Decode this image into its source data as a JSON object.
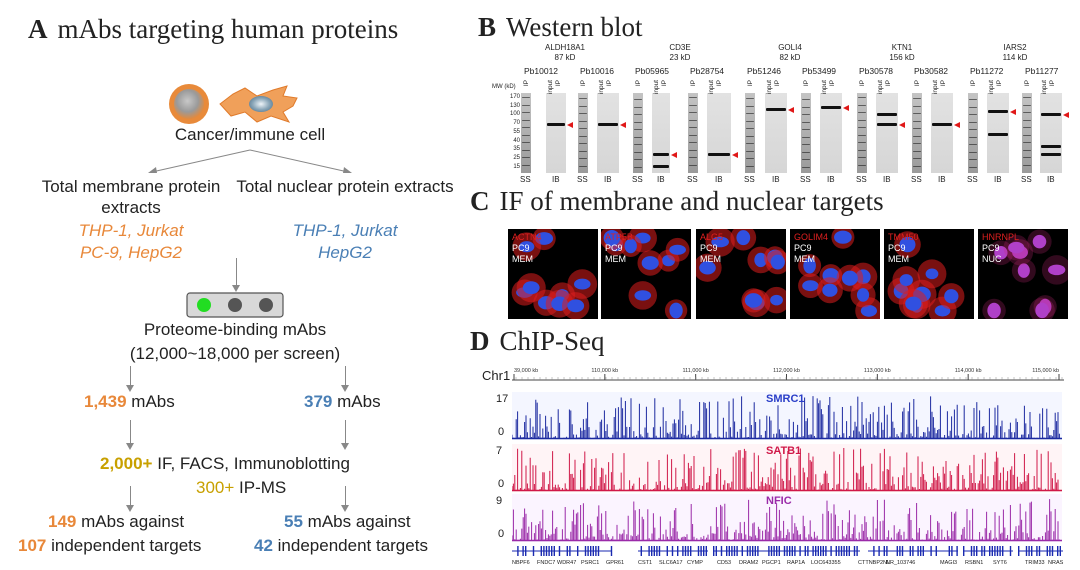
{
  "panelA": {
    "letter": "A",
    "title": "mAbs targeting human proteins",
    "cell_label": "Cancer/immune cell",
    "membrane_title": "Total membrane protein extracts",
    "membrane_cells": [
      "THP-1, Jurkat",
      "PC-9, HepG2"
    ],
    "nuclear_title": "Total nuclear protein extracts",
    "nuclear_cells": [
      "THP-1, Jurkat",
      "HepG2"
    ],
    "binding_title": "Proteome-binding mAbs",
    "binding_sub": "(12,000~18,000 per screen)",
    "left_count": "1,439",
    "right_count": "379",
    "mabs_word": "mAbs",
    "validation_count": "2,000+",
    "validation_text": "IF, FACS, Immunoblotting",
    "ipms_count": "300+",
    "ipms_text": "IP-MS",
    "left_final_count": "149",
    "left_final_target_count": "107",
    "right_final_count": "55",
    "right_final_target_count": "42",
    "against_text": "mAbs against",
    "independent_text": "independent targets"
  },
  "panelB": {
    "letter": "B",
    "title": "Western blot",
    "mw_label": "MW (kD)",
    "mw_marks": [
      "170",
      "130",
      "100",
      "70",
      "55",
      "40",
      "35",
      "25",
      "15"
    ],
    "genes": [
      {
        "name": "ALDH18A1",
        "kd": "87 kD"
      },
      {
        "name": "CD3E",
        "kd": "23 kD"
      },
      {
        "name": "GOLI4",
        "kd": "82 kD"
      },
      {
        "name": "KTN1",
        "kd": "156 kD"
      },
      {
        "name": "IARS2",
        "kd": "114 kD"
      }
    ],
    "pb_ids": [
      "Pb10012",
      "Pb10016",
      "Pb05965",
      "Pb28754",
      "Pb51246",
      "Pb53499",
      "Pb30578",
      "Pb30582",
      "Pb11272",
      "Pb11277"
    ],
    "lane_label_ip": "IP",
    "lane_label_input": "input",
    "foot_ss": "SS",
    "foot_ib": "IB"
  },
  "panelC": {
    "letter": "C",
    "title": "IF of membrane and nuclear targets",
    "tiles": [
      {
        "target": "ACTN4",
        "cell": "PC9",
        "loc": "MEM"
      },
      {
        "target": "ATP5B",
        "cell": "PC9",
        "loc": "MEM"
      },
      {
        "target": "ALG5",
        "cell": "PC9",
        "loc": "MEM"
      },
      {
        "target": "GOLIM4",
        "cell": "PC9",
        "loc": "MEM"
      },
      {
        "target": "TMM50",
        "cell": "PC9",
        "loc": "MEM"
      },
      {
        "target": "HNRNPL",
        "cell": "PC9",
        "loc": "NUC"
      }
    ]
  },
  "panelD": {
    "letter": "D",
    "title": "ChIP-Seq",
    "chrom": "Chr1",
    "ruler_ticks": [
      "39,000 kb",
      "110,000 kb",
      "111,000 kb",
      "112,000 kb",
      "113,000 kb",
      "114,000 kb",
      "115,000 kb"
    ],
    "tracks": [
      {
        "name": "SMRC1",
        "max": "17",
        "min": "0",
        "color": "#1c2aa0",
        "label_color": "#2a3ec8"
      },
      {
        "name": "SATB1",
        "max": "7",
        "min": "0",
        "color": "#d01848",
        "label_color": "#d01848"
      },
      {
        "name": "NFIC",
        "max": "9",
        "min": "0",
        "color": "#9a2aa8",
        "label_color": "#9a2aa8"
      }
    ],
    "genes": [
      "NBPF6",
      "FNDC7",
      "WDR47",
      "PSRC1",
      "GPR61",
      "CST1",
      "SLC6A17",
      "CYMP",
      "CD53",
      "DRAM2",
      "PGCP1",
      "RAP1A",
      "LOC643355",
      "CTTNBP2NL",
      "NR_103746",
      "MAGI3",
      "RSBN1",
      "SYT6",
      "TRIM33",
      "NRAS"
    ]
  }
}
